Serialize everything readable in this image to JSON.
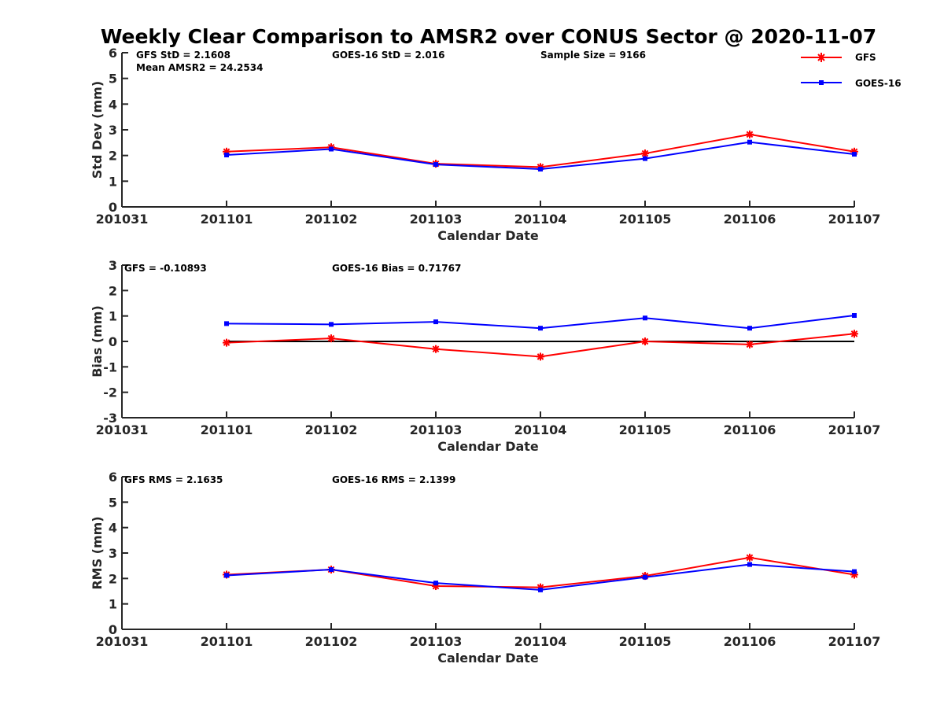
{
  "title": "Weekly Clear Comparison to AMSR2 over CONUS Sector @ 2020-11-07",
  "legend": {
    "placement": "top-right",
    "items": [
      {
        "name": "GFS",
        "color": "#ff0000",
        "marker": "asterisk"
      },
      {
        "name": "GOES-16",
        "color": "#0000ff",
        "marker": "square"
      }
    ]
  },
  "chart_data": [
    {
      "type": "line",
      "xlabel": "Calendar Date",
      "ylabel": "Std Dev (mm)",
      "ylim": [
        0,
        6
      ],
      "yticks": [
        "0",
        "1",
        "2",
        "3",
        "4",
        "5",
        "6"
      ],
      "xticks": [
        "201031",
        "201101",
        "201102",
        "201103",
        "201104",
        "201105",
        "201106",
        "201107"
      ],
      "annotations": [
        "GFS StD = 2.1608",
        "Mean AMSR2 = 24.2534",
        "GOES-16 StD = 2.016",
        "Sample Size = 9166"
      ],
      "x": [
        "201101",
        "201102",
        "201103",
        "201104",
        "201105",
        "201106",
        "201107"
      ],
      "series": [
        {
          "name": "GFS",
          "values": [
            2.15,
            2.32,
            1.68,
            1.55,
            2.08,
            2.82,
            2.15
          ]
        },
        {
          "name": "GOES-16",
          "values": [
            2.02,
            2.25,
            1.65,
            1.47,
            1.88,
            2.52,
            2.05
          ]
        }
      ]
    },
    {
      "type": "line",
      "xlabel": "Calendar Date",
      "ylabel": "Bias (mm)",
      "ylim": [
        -3,
        3
      ],
      "yticks": [
        "-3",
        "-2",
        "-1",
        "0",
        "1",
        "2",
        "3"
      ],
      "xticks": [
        "201031",
        "201101",
        "201102",
        "201103",
        "201104",
        "201105",
        "201106",
        "201107"
      ],
      "annotations": [
        "GFS = -0.10893",
        "GOES-16 Bias  = 0.71767"
      ],
      "zero_line": 0,
      "x": [
        "201101",
        "201102",
        "201103",
        "201104",
        "201105",
        "201106",
        "201107"
      ],
      "series": [
        {
          "name": "GFS",
          "values": [
            -0.05,
            0.12,
            -0.3,
            -0.6,
            0.0,
            -0.12,
            0.3
          ]
        },
        {
          "name": "GOES-16",
          "values": [
            0.7,
            0.67,
            0.77,
            0.52,
            0.92,
            0.52,
            1.02
          ]
        }
      ]
    },
    {
      "type": "line",
      "xlabel": "Calendar Date",
      "ylabel": "RMS (mm)",
      "ylim": [
        0,
        6
      ],
      "yticks": [
        "0",
        "1",
        "2",
        "3",
        "4",
        "5",
        "6"
      ],
      "xticks": [
        "201031",
        "201101",
        "201102",
        "201103",
        "201104",
        "201105",
        "201106",
        "201107"
      ],
      "annotations": [
        "GFS RMS = 2.1635",
        "GOES-16 RMS = 2.1399"
      ],
      "x": [
        "201101",
        "201102",
        "201103",
        "201104",
        "201105",
        "201106",
        "201107"
      ],
      "series": [
        {
          "name": "GFS",
          "values": [
            2.15,
            2.35,
            1.7,
            1.65,
            2.1,
            2.82,
            2.15
          ]
        },
        {
          "name": "GOES-16",
          "values": [
            2.12,
            2.35,
            1.82,
            1.55,
            2.05,
            2.55,
            2.27
          ]
        }
      ]
    }
  ]
}
